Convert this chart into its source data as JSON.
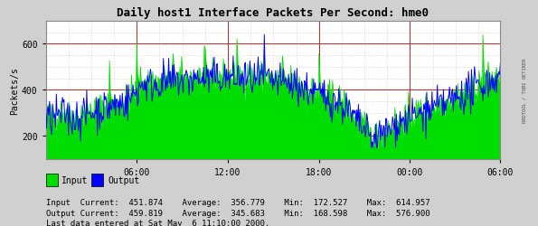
{
  "title": "Daily host1 Interface Packets Per Second: hme0",
  "ylabel": "Packets/s",
  "bg_color": "#d0d0d0",
  "plot_bg_color": "#ffffff",
  "grid_major_color": "#cc8888",
  "grid_minor_color": "#ddbbbb",
  "input_color": "#00dd00",
  "output_color": "#0000ff",
  "ylim": [
    100,
    700
  ],
  "yticks": [
    200,
    400,
    600
  ],
  "xlabels": [
    "06:00",
    "12:00",
    "18:00",
    "00:00",
    "06:00"
  ],
  "legend_input": "Input",
  "legend_output": "Output",
  "stats_input_current": "451.874",
  "stats_input_average": "356.779",
  "stats_input_min": "172.527",
  "stats_input_max": "614.957",
  "stats_output_current": "459.819",
  "stats_output_average": "345.683",
  "stats_output_min": "168.598",
  "stats_output_max": "576.900",
  "last_data": "Last data entered at Sat May  6 11:10:00 2000.",
  "rrdtool_label": "RRDTOOL / TOBI OETIKER",
  "n_points": 600,
  "seed": 42
}
